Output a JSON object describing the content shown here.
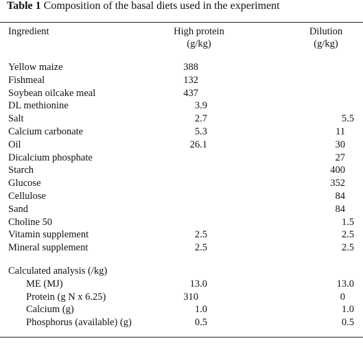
{
  "table": {
    "caption_label": "Table 1",
    "caption_text": "Composition of the basal diets used in the experiment",
    "headers": {
      "ingredient": "Ingredient",
      "high_protein": "High protein",
      "high_protein_unit": "(g/kg)",
      "dilution": "Dilution",
      "dilution_unit": "(g/kg)"
    },
    "rows": [
      {
        "name": "Yellow maize",
        "hp": "388",
        "dil": ""
      },
      {
        "name": "Fishmeal",
        "hp": "132",
        "dil": ""
      },
      {
        "name": "Soybean oilcake meal",
        "hp": "437",
        "dil": ""
      },
      {
        "name": "DL methionine",
        "hp": "3.9",
        "dil": ""
      },
      {
        "name": "Salt",
        "hp": "2.7",
        "dil": "5.5"
      },
      {
        "name": "Calcium carbonate",
        "hp": "5.3",
        "dil": "11"
      },
      {
        "name": "Oil",
        "hp": "26.1",
        "dil": "30"
      },
      {
        "name": "Dicalcium phosphate",
        "hp": "",
        "dil": "27"
      },
      {
        "name": "Starch",
        "hp": "",
        "dil": "400"
      },
      {
        "name": "Glucose",
        "hp": "",
        "dil": "352"
      },
      {
        "name": "Cellulose",
        "hp": "",
        "dil": "84"
      },
      {
        "name": "Sand",
        "hp": "",
        "dil": "84"
      },
      {
        "name": "Choline 50",
        "hp": "",
        "dil": "1.5"
      },
      {
        "name": "Vitamin supplement",
        "hp": "2.5",
        "dil": "2.5"
      },
      {
        "name": "Mineral supplement",
        "hp": "2.5",
        "dil": "2.5"
      }
    ],
    "analysis_heading": "Calculated analysis (/kg)",
    "analysis_rows": [
      {
        "name": "ME (MJ)",
        "hp": "13.0",
        "dil": "13.0"
      },
      {
        "name": "Protein (g N x 6.25)",
        "hp": "310",
        "dil": "0"
      },
      {
        "name": "Calcium (g)",
        "hp": "1.0",
        "dil": "1.0"
      },
      {
        "name": "Phosphorus (available) (g)",
        "hp": "0.5",
        "dil": "0.5"
      }
    ]
  }
}
